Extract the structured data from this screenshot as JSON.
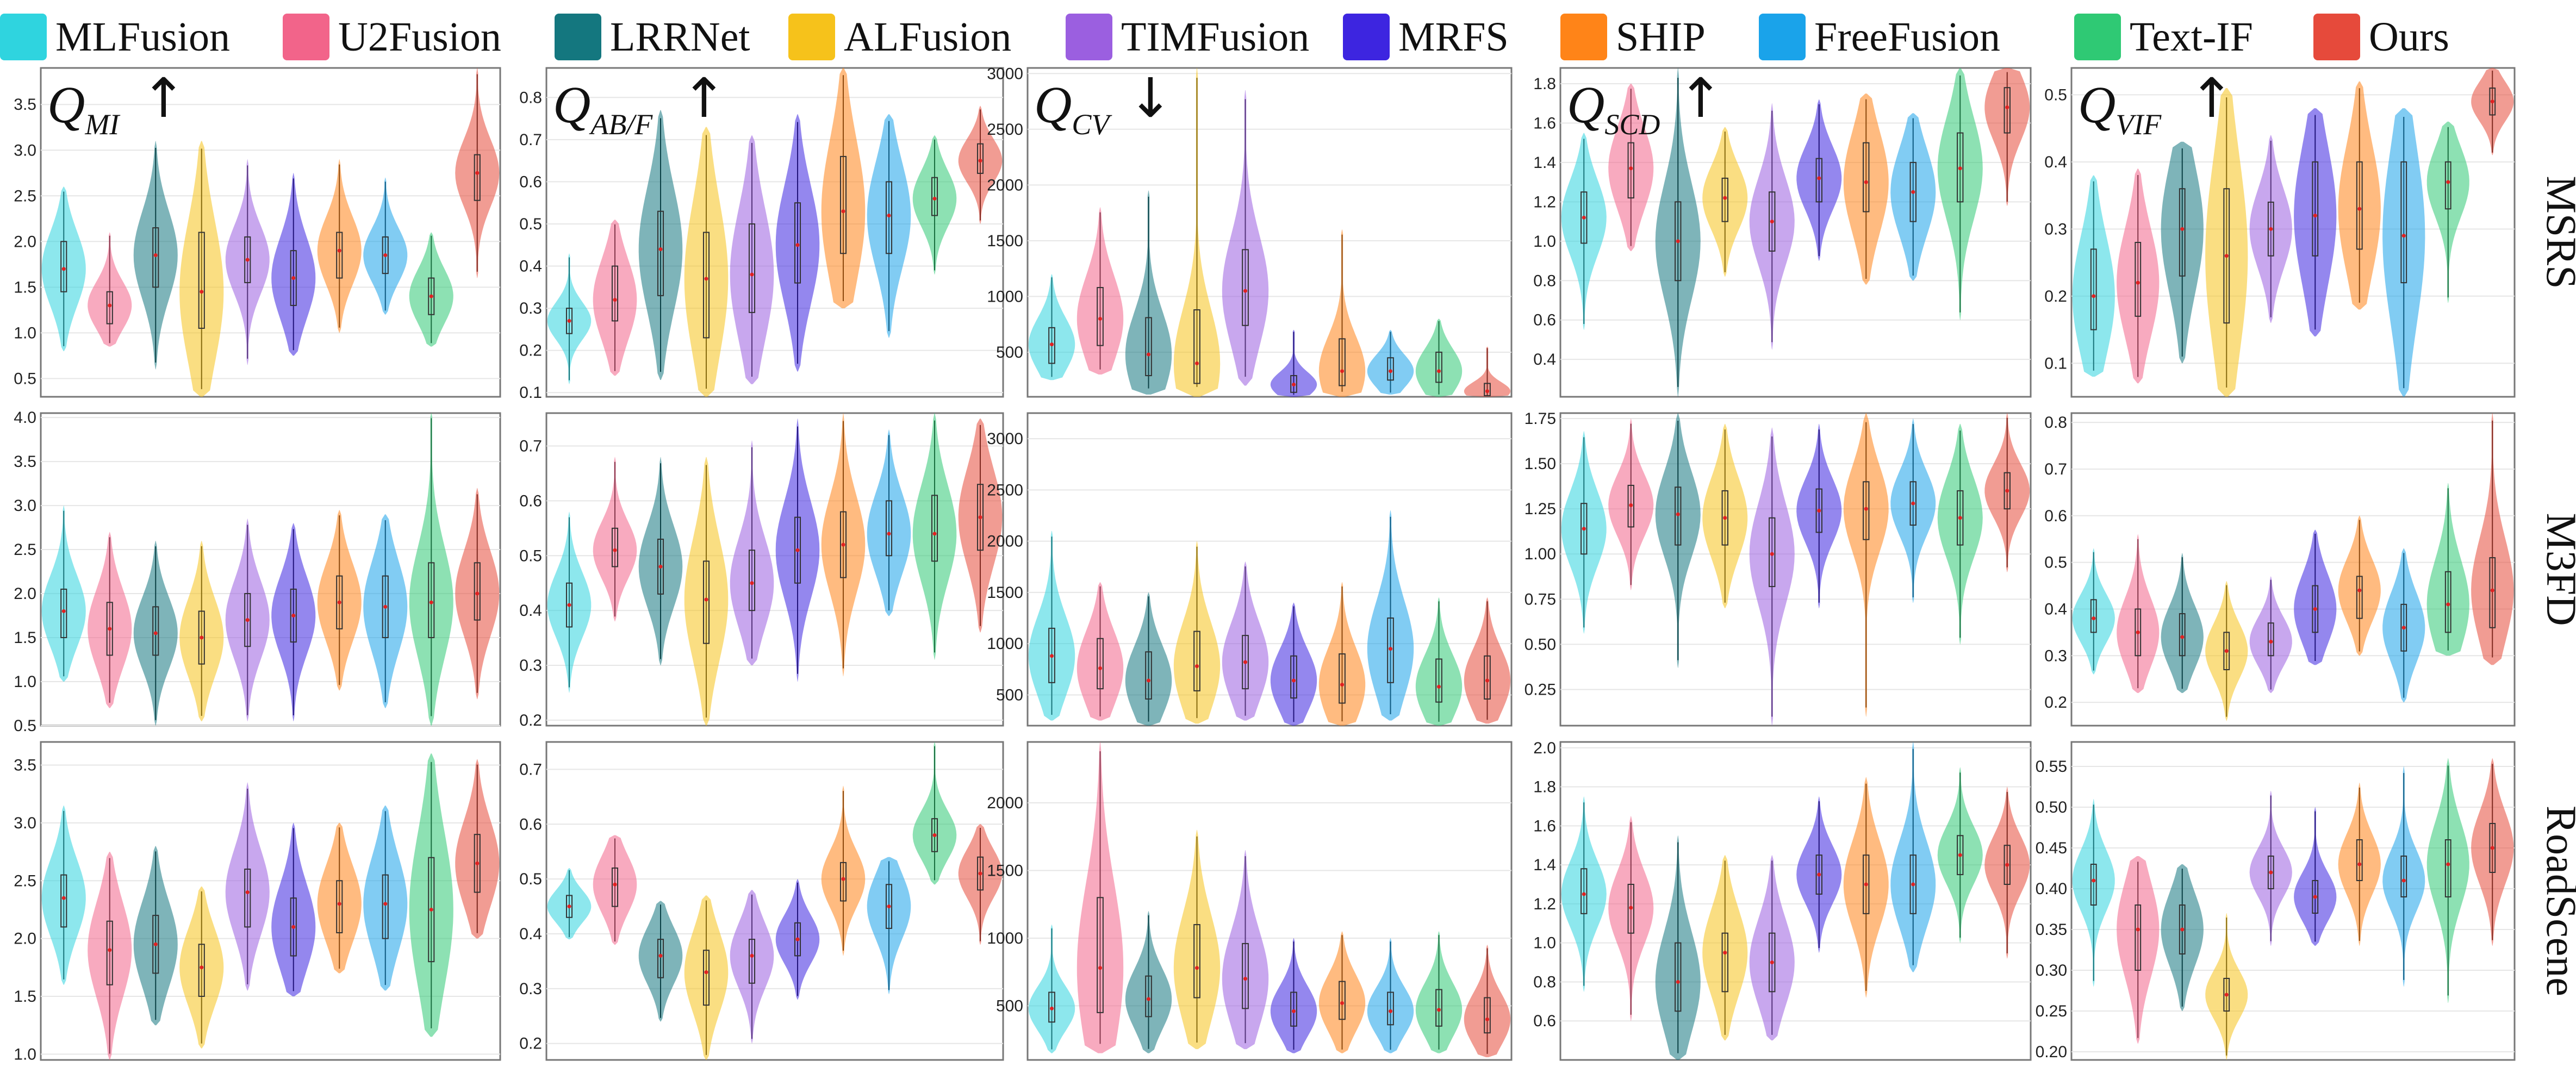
{
  "legend": [
    {
      "name": "MLFusion",
      "color": "#2fd4df"
    },
    {
      "name": "U2Fusion",
      "color": "#f2648a"
    },
    {
      "name": "LRRNet",
      "color": "#14777f"
    },
    {
      "name": "ALFusion",
      "color": "#f6c21b"
    },
    {
      "name": "TIMFusion",
      "color": "#9b5fe0"
    },
    {
      "name": "MRFS",
      "color": "#3d25e0"
    },
    {
      "name": "SHIP",
      "color": "#ff8418"
    },
    {
      "name": "FreeFusion",
      "color": "#1aa3ea"
    },
    {
      "name": "Text-IF",
      "color": "#2fc974"
    },
    {
      "name": "Ours",
      "color": "#e64a3b"
    }
  ],
  "rows": [
    "MSRS",
    "M3FD",
    "RoadScene"
  ],
  "metrics": [
    {
      "main": "Q",
      "sub": "MI",
      "arrow": "↑"
    },
    {
      "main": "Q",
      "sub": "AB/F",
      "arrow": "↑"
    },
    {
      "main": "Q",
      "sub": "CV",
      "arrow": "↓"
    },
    {
      "main": "Q",
      "sub": "SCD",
      "arrow": "↑"
    },
    {
      "main": "Q",
      "sub": "VIF",
      "arrow": "↑"
    }
  ],
  "chart_data": [
    {
      "type": "violin",
      "row": "MSRS",
      "metric": "Q_MI",
      "ylim": [
        0.3,
        3.9
      ],
      "yticks": [
        "0.5",
        "1.0",
        "1.5",
        "2.0",
        "2.5",
        "3.0",
        "3.5"
      ],
      "medians": [
        1.7,
        1.3,
        1.85,
        1.45,
        1.8,
        1.6,
        1.9,
        1.85,
        1.4,
        2.75
      ],
      "q1": [
        1.45,
        1.1,
        1.5,
        1.05,
        1.55,
        1.3,
        1.6,
        1.65,
        1.2,
        2.45
      ],
      "q3": [
        2.0,
        1.45,
        2.15,
        2.1,
        2.05,
        1.9,
        2.1,
        2.05,
        1.6,
        2.95
      ],
      "min": [
        0.8,
        0.85,
        0.6,
        0.3,
        0.65,
        0.75,
        1.0,
        1.2,
        0.85,
        1.6
      ],
      "max": [
        2.6,
        2.1,
        3.1,
        3.1,
        2.9,
        2.75,
        2.9,
        2.7,
        2.1,
        3.9
      ]
    },
    {
      "type": "violin",
      "row": "MSRS",
      "metric": "Q_AB/F",
      "ylim": [
        0.09,
        0.87
      ],
      "yticks": [
        "0.1",
        "0.2",
        "0.3",
        "0.4",
        "0.5",
        "0.6",
        "0.7",
        "0.8"
      ],
      "medians": [
        0.27,
        0.32,
        0.44,
        0.37,
        0.38,
        0.45,
        0.53,
        0.52,
        0.56,
        0.65
      ],
      "q1": [
        0.24,
        0.27,
        0.33,
        0.23,
        0.29,
        0.36,
        0.43,
        0.43,
        0.52,
        0.62
      ],
      "q3": [
        0.3,
        0.4,
        0.53,
        0.48,
        0.5,
        0.55,
        0.66,
        0.6,
        0.61,
        0.69
      ],
      "min": [
        0.12,
        0.14,
        0.13,
        0.09,
        0.12,
        0.15,
        0.3,
        0.23,
        0.38,
        0.5
      ],
      "max": [
        0.43,
        0.51,
        0.77,
        0.73,
        0.71,
        0.76,
        0.87,
        0.76,
        0.71,
        0.78
      ]
    },
    {
      "type": "violin",
      "row": "MSRS",
      "metric": "Q_CV",
      "ylim": [
        100,
        3050
      ],
      "yticks": [
        "500",
        "1000",
        "1500",
        "2000",
        "2500",
        "3000"
      ],
      "medians": [
        570,
        800,
        480,
        400,
        1050,
        210,
        330,
        330,
        330,
        150
      ],
      "q1": [
        400,
        560,
        290,
        220,
        740,
        140,
        200,
        250,
        230,
        110
      ],
      "q3": [
        720,
        1080,
        810,
        880,
        1420,
        290,
        620,
        450,
        500,
        220
      ],
      "min": [
        250,
        300,
        120,
        100,
        200,
        100,
        100,
        120,
        100,
        100
      ],
      "max": [
        1200,
        1800,
        1950,
        3050,
        2850,
        700,
        1600,
        700,
        800,
        550
      ]
    },
    {
      "type": "violin",
      "row": "MSRS",
      "metric": "Q_SCD",
      "ylim": [
        0.21,
        1.88
      ],
      "yticks": [
        "0.4",
        "0.6",
        "0.8",
        "1.0",
        "1.2",
        "1.4",
        "1.6",
        "1.8"
      ],
      "medians": [
        1.12,
        1.37,
        1.0,
        1.22,
        1.1,
        1.32,
        1.3,
        1.25,
        1.37,
        1.68
      ],
      "q1": [
        0.99,
        1.22,
        0.8,
        1.1,
        0.95,
        1.2,
        1.15,
        1.1,
        1.2,
        1.55
      ],
      "q3": [
        1.25,
        1.5,
        1.2,
        1.32,
        1.25,
        1.42,
        1.5,
        1.4,
        1.55,
        1.78
      ],
      "min": [
        0.55,
        0.95,
        0.21,
        0.82,
        0.45,
        0.9,
        0.78,
        0.8,
        0.6,
        1.18
      ],
      "max": [
        1.55,
        1.8,
        1.88,
        1.58,
        1.7,
        1.72,
        1.75,
        1.65,
        1.88,
        1.88
      ]
    },
    {
      "type": "violin",
      "row": "MSRS",
      "metric": "Q_VIF",
      "ylim": [
        0.05,
        0.54
      ],
      "yticks": [
        "0.1",
        "0.2",
        "0.3",
        "0.4",
        "0.5"
      ],
      "medians": [
        0.2,
        0.22,
        0.3,
        0.26,
        0.3,
        0.32,
        0.33,
        0.29,
        0.37,
        0.49
      ],
      "q1": [
        0.15,
        0.17,
        0.23,
        0.16,
        0.26,
        0.26,
        0.27,
        0.22,
        0.33,
        0.47
      ],
      "q3": [
        0.27,
        0.28,
        0.36,
        0.36,
        0.34,
        0.4,
        0.4,
        0.4,
        0.4,
        0.51
      ],
      "min": [
        0.08,
        0.07,
        0.1,
        0.05,
        0.16,
        0.14,
        0.18,
        0.05,
        0.19,
        0.41
      ],
      "max": [
        0.38,
        0.39,
        0.43,
        0.51,
        0.44,
        0.48,
        0.52,
        0.48,
        0.46,
        0.54
      ]
    },
    {
      "type": "violin",
      "row": "M3FD",
      "metric": "Q_MI",
      "ylim": [
        0.5,
        4.05
      ],
      "yticks": [
        "0.5",
        "1.0",
        "1.5",
        "2.0",
        "2.5",
        "3.0",
        "3.5",
        "4.0"
      ],
      "medians": [
        1.8,
        1.6,
        1.55,
        1.5,
        1.7,
        1.75,
        1.9,
        1.85,
        1.9,
        2.0
      ],
      "q1": [
        1.5,
        1.3,
        1.3,
        1.2,
        1.4,
        1.45,
        1.6,
        1.5,
        1.5,
        1.7
      ],
      "q3": [
        2.05,
        1.9,
        1.85,
        1.8,
        2.0,
        2.05,
        2.2,
        2.2,
        2.35,
        2.35
      ],
      "min": [
        1.0,
        0.7,
        0.5,
        0.55,
        0.55,
        0.55,
        0.9,
        0.7,
        0.5,
        0.8
      ],
      "max": [
        3.0,
        2.7,
        2.6,
        2.6,
        2.85,
        2.8,
        2.95,
        2.9,
        4.1,
        3.2
      ]
    },
    {
      "type": "violin",
      "row": "M3FD",
      "metric": "Q_AB/F",
      "ylim": [
        0.19,
        0.76
      ],
      "yticks": [
        "0.2",
        "0.3",
        "0.4",
        "0.5",
        "0.6",
        "0.7"
      ],
      "medians": [
        0.41,
        0.51,
        0.48,
        0.42,
        0.45,
        0.51,
        0.52,
        0.54,
        0.54,
        0.57
      ],
      "q1": [
        0.37,
        0.48,
        0.43,
        0.34,
        0.4,
        0.45,
        0.46,
        0.5,
        0.49,
        0.51
      ],
      "q3": [
        0.45,
        0.55,
        0.53,
        0.49,
        0.51,
        0.57,
        0.58,
        0.6,
        0.61,
        0.63
      ],
      "min": [
        0.25,
        0.38,
        0.3,
        0.19,
        0.3,
        0.27,
        0.28,
        0.39,
        0.31,
        0.36
      ],
      "max": [
        0.58,
        0.68,
        0.68,
        0.68,
        0.71,
        0.75,
        0.76,
        0.73,
        0.76,
        0.75
      ]
    },
    {
      "type": "violin",
      "row": "M3FD",
      "metric": "Q_CV",
      "ylim": [
        200,
        3250
      ],
      "yticks": [
        "500",
        "1000",
        "1500",
        "2000",
        "2500",
        "3000"
      ],
      "medians": [
        880,
        760,
        640,
        780,
        820,
        640,
        600,
        950,
        580,
        640
      ],
      "q1": [
        620,
        560,
        460,
        540,
        560,
        470,
        420,
        620,
        430,
        460
      ],
      "q3": [
        1150,
        1050,
        920,
        1120,
        1080,
        880,
        900,
        1250,
        850,
        880
      ],
      "min": [
        250,
        250,
        200,
        220,
        250,
        200,
        200,
        250,
        200,
        220
      ],
      "max": [
        2100,
        1600,
        1500,
        2000,
        1800,
        1400,
        1600,
        2300,
        1450,
        1450
      ]
    },
    {
      "type": "violin",
      "row": "M3FD",
      "metric": "Q_SCD",
      "ylim": [
        0.05,
        1.78
      ],
      "yticks": [
        "0.25",
        "0.50",
        "0.75",
        "1.00",
        "1.25",
        "1.50",
        "1.75"
      ],
      "medians": [
        1.14,
        1.27,
        1.22,
        1.2,
        1.0,
        1.24,
        1.25,
        1.28,
        1.2,
        1.35
      ],
      "q1": [
        1.0,
        1.15,
        1.05,
        1.05,
        0.82,
        1.12,
        1.08,
        1.16,
        1.05,
        1.25
      ],
      "q3": [
        1.28,
        1.38,
        1.37,
        1.35,
        1.2,
        1.36,
        1.4,
        1.4,
        1.35,
        1.45
      ],
      "min": [
        0.56,
        0.8,
        0.37,
        0.7,
        0.05,
        0.7,
        0.1,
        0.73,
        0.5,
        0.9
      ],
      "max": [
        1.68,
        1.75,
        1.78,
        1.72,
        1.7,
        1.72,
        1.78,
        1.75,
        1.72,
        1.78
      ]
    },
    {
      "type": "violin",
      "row": "M3FD",
      "metric": "Q_VIF",
      "ylim": [
        0.15,
        0.82
      ],
      "yticks": [
        "0.2",
        "0.3",
        "0.4",
        "0.5",
        "0.6",
        "0.7",
        "0.8"
      ],
      "medians": [
        0.38,
        0.35,
        0.34,
        0.31,
        0.33,
        0.4,
        0.44,
        0.36,
        0.41,
        0.44
      ],
      "q1": [
        0.35,
        0.3,
        0.3,
        0.27,
        0.3,
        0.35,
        0.38,
        0.31,
        0.35,
        0.36
      ],
      "q3": [
        0.42,
        0.4,
        0.39,
        0.35,
        0.37,
        0.45,
        0.47,
        0.41,
        0.48,
        0.51
      ],
      "min": [
        0.26,
        0.22,
        0.22,
        0.16,
        0.22,
        0.28,
        0.3,
        0.2,
        0.3,
        0.28
      ],
      "max": [
        0.53,
        0.56,
        0.52,
        0.46,
        0.47,
        0.57,
        0.6,
        0.53,
        0.67,
        0.82
      ]
    },
    {
      "type": "violin",
      "row": "RoadScene",
      "metric": "Q_MI",
      "ylim": [
        0.95,
        3.7
      ],
      "yticks": [
        "1.0",
        "1.5",
        "2.0",
        "2.5",
        "3.0",
        "3.5"
      ],
      "medians": [
        2.35,
        1.9,
        1.95,
        1.75,
        2.4,
        2.1,
        2.3,
        2.3,
        2.25,
        2.65
      ],
      "q1": [
        2.1,
        1.6,
        1.7,
        1.5,
        2.1,
        1.85,
        2.05,
        2.0,
        1.8,
        2.4
      ],
      "q3": [
        2.55,
        2.15,
        2.2,
        1.95,
        2.6,
        2.35,
        2.5,
        2.55,
        2.7,
        2.9
      ],
      "min": [
        1.6,
        0.95,
        1.25,
        1.05,
        1.55,
        1.5,
        1.7,
        1.55,
        1.15,
        2.0
      ],
      "max": [
        3.15,
        2.75,
        2.8,
        2.45,
        3.35,
        3.0,
        3.0,
        3.15,
        3.6,
        3.55
      ]
    },
    {
      "type": "violin",
      "row": "RoadScene",
      "metric": "Q_AB/F",
      "ylim": [
        0.17,
        0.75
      ],
      "yticks": [
        "0.2",
        "0.3",
        "0.4",
        "0.5",
        "0.6",
        "0.7"
      ],
      "medians": [
        0.45,
        0.49,
        0.36,
        0.33,
        0.36,
        0.39,
        0.5,
        0.45,
        0.58,
        0.51
      ],
      "q1": [
        0.43,
        0.45,
        0.32,
        0.27,
        0.31,
        0.36,
        0.46,
        0.41,
        0.55,
        0.48
      ],
      "q3": [
        0.47,
        0.52,
        0.39,
        0.37,
        0.39,
        0.42,
        0.53,
        0.49,
        0.61,
        0.54
      ],
      "min": [
        0.39,
        0.38,
        0.24,
        0.17,
        0.2,
        0.28,
        0.36,
        0.29,
        0.49,
        0.38
      ],
      "max": [
        0.52,
        0.58,
        0.46,
        0.47,
        0.48,
        0.5,
        0.67,
        0.54,
        0.75,
        0.6
      ]
    },
    {
      "type": "violin",
      "row": "RoadScene",
      "metric": "Q_CV",
      "ylim": [
        100,
        2450
      ],
      "yticks": [
        "500",
        "1000",
        "1500",
        "2000"
      ],
      "medians": [
        480,
        780,
        550,
        780,
        700,
        460,
        520,
        460,
        470,
        400
      ],
      "q1": [
        380,
        450,
        420,
        560,
        480,
        350,
        400,
        360,
        350,
        300
      ],
      "q3": [
        600,
        1300,
        720,
        1100,
        960,
        600,
        680,
        600,
        620,
        560
      ],
      "min": [
        150,
        150,
        150,
        180,
        180,
        150,
        150,
        150,
        150,
        120
      ],
      "max": [
        1100,
        2450,
        1200,
        1800,
        1650,
        1000,
        1050,
        1000,
        1050,
        950
      ]
    },
    {
      "type": "violin",
      "row": "RoadScene",
      "metric": "Q_SCD",
      "ylim": [
        0.4,
        2.03
      ],
      "yticks": [
        "0.6",
        "0.8",
        "1.0",
        "1.2",
        "1.4",
        "1.6",
        "1.8",
        "2.0"
      ],
      "medians": [
        1.25,
        1.18,
        0.8,
        0.95,
        0.9,
        1.35,
        1.3,
        1.3,
        1.45,
        1.4
      ],
      "q1": [
        1.15,
        1.05,
        0.65,
        0.75,
        0.75,
        1.25,
        1.15,
        1.15,
        1.35,
        1.3
      ],
      "q3": [
        1.38,
        1.3,
        1.0,
        1.05,
        1.05,
        1.45,
        1.45,
        1.45,
        1.55,
        1.5
      ],
      "min": [
        0.75,
        0.6,
        0.4,
        0.5,
        0.5,
        0.95,
        0.72,
        0.85,
        1.0,
        0.92
      ],
      "max": [
        1.75,
        1.65,
        1.55,
        1.45,
        1.45,
        1.75,
        1.85,
        2.03,
        1.9,
        1.8
      ]
    },
    {
      "type": "violin",
      "row": "RoadScene",
      "metric": "Q_VIF",
      "ylim": [
        0.19,
        0.58
      ],
      "yticks": [
        "0.20",
        "0.25",
        "0.30",
        "0.35",
        "0.40",
        "0.45",
        "0.50",
        "0.55"
      ],
      "medians": [
        0.41,
        0.35,
        0.35,
        0.27,
        0.42,
        0.39,
        0.43,
        0.41,
        0.43,
        0.45
      ],
      "q1": [
        0.38,
        0.3,
        0.32,
        0.25,
        0.4,
        0.37,
        0.41,
        0.39,
        0.39,
        0.42
      ],
      "q3": [
        0.43,
        0.38,
        0.38,
        0.29,
        0.44,
        0.41,
        0.46,
        0.44,
        0.46,
        0.48
      ],
      "min": [
        0.28,
        0.21,
        0.25,
        0.19,
        0.33,
        0.33,
        0.33,
        0.28,
        0.26,
        0.33
      ],
      "max": [
        0.51,
        0.44,
        0.43,
        0.37,
        0.52,
        0.5,
        0.53,
        0.55,
        0.56,
        0.56
      ]
    }
  ]
}
